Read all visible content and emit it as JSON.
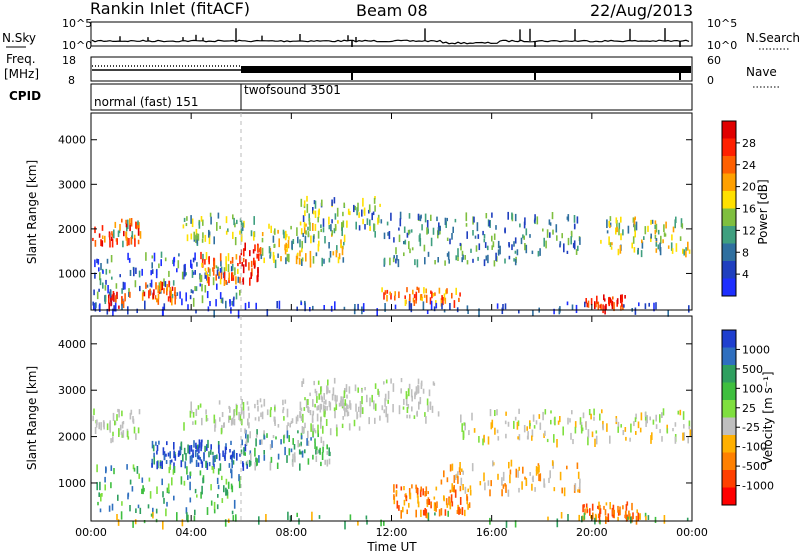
{
  "header": {
    "station": "Rankin Inlet (fitACF)",
    "beam": "Beam 08",
    "date": "22/Aug/2013"
  },
  "panels": {
    "nsky": {
      "label": "N.Sky",
      "ticks": [
        "10^5",
        "10^0"
      ],
      "right_label": "N.Search",
      "right_ticks": [
        "10^5",
        "10^0"
      ]
    },
    "freq": {
      "label_line1": "Freq.",
      "label_line2": "[MHz]",
      "ticks": [
        "18",
        "8"
      ],
      "right_label": "Nave",
      "right_ticks": [
        "60",
        "0"
      ]
    },
    "cpid": {
      "label": "CPID",
      "segments": [
        "normal (fast) 151",
        "twofsound 3501"
      ]
    }
  },
  "colors": {
    "power_scale": [
      "#1e2fff",
      "#1f3fbf",
      "#2f6f9f",
      "#3f9f7f",
      "#7fbf3f",
      "#ffe000",
      "#ffa000",
      "#ff6000",
      "#ff2000",
      "#e00000"
    ],
    "velocity_scale": [
      "#1f3fcf",
      "#2f6fbf",
      "#2f9f5f",
      "#3fbf3f",
      "#7fdf3f",
      "#bfbfbf",
      "#ffb000",
      "#ff8000",
      "#ff4000",
      "#ff0000"
    ]
  },
  "chart_data": [
    {
      "type": "heatmap",
      "title": "Power",
      "ylabel": "Slant Range [km]",
      "xlabel": "Time UT",
      "ylim": [
        180,
        4600
      ],
      "x_ticks": [
        "00:00",
        "04:00",
        "08:00",
        "12:00",
        "16:00",
        "20:00",
        "00:00"
      ],
      "y_ticks": [
        1000,
        2000,
        3000,
        4000
      ],
      "colorbar": {
        "label": "Power [dB]",
        "ticks": [
          4,
          8,
          12,
          16,
          20,
          24,
          28
        ]
      }
    },
    {
      "type": "heatmap",
      "title": "Velocity",
      "ylabel": "Slant Range [km]",
      "xlabel": "Time UT",
      "ylim": [
        180,
        4600
      ],
      "x_ticks": [
        "00:00",
        "04:00",
        "08:00",
        "12:00",
        "16:00",
        "20:00",
        "00:00"
      ],
      "y_ticks": [
        1000,
        2000,
        3000,
        4000
      ],
      "colorbar": {
        "label": "Velocity [m s⁻¹]",
        "ticks": [
          1000,
          500,
          100,
          25,
          -25,
          -100,
          -500,
          -1000
        ]
      }
    }
  ]
}
